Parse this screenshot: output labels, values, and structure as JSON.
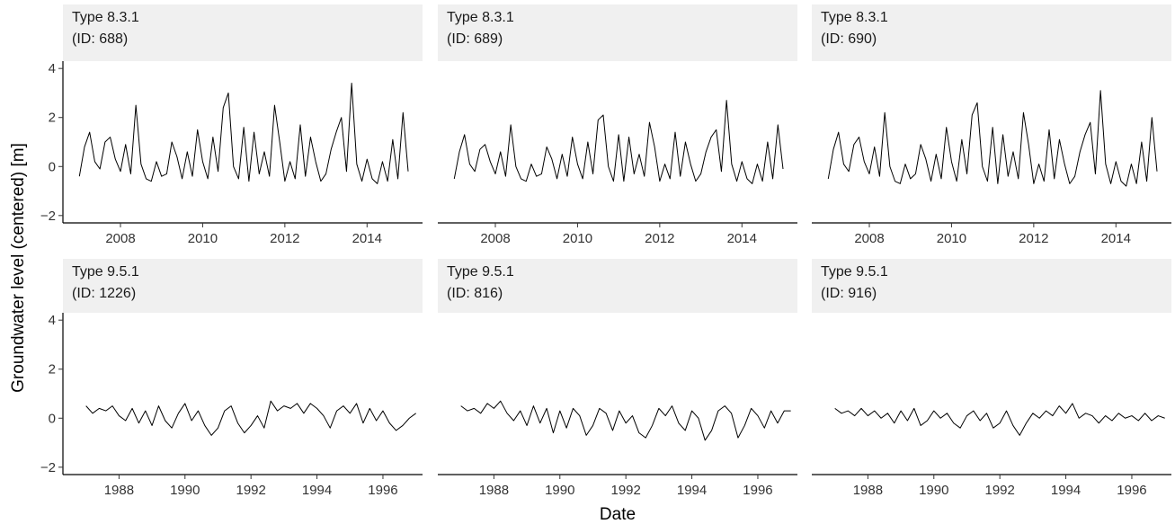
{
  "x_label": "Date",
  "y_label": "Groundwater level (centered) [m]",
  "chart_data": [
    {
      "type": "line",
      "title": "Type 8.3.1",
      "subtitle": "(ID: 688)",
      "color": "#000000",
      "xlim": [
        2006.6,
        2015.35
      ],
      "xticks": [
        2008,
        2010,
        2012,
        2014
      ],
      "ylim": [
        -2.3,
        4.3
      ],
      "yticks": [
        {
          "value": -2,
          "label": "−2"
        },
        0,
        2,
        4
      ],
      "x": [
        2007,
        2007.125,
        2007.25,
        2007.375,
        2007.5,
        2007.625,
        2007.75,
        2007.875,
        2008,
        2008.125,
        2008.25,
        2008.375,
        2008.5,
        2008.625,
        2008.75,
        2008.875,
        2009,
        2009.125,
        2009.25,
        2009.375,
        2009.5,
        2009.625,
        2009.75,
        2009.875,
        2010,
        2010.125,
        2010.25,
        2010.375,
        2010.5,
        2010.625,
        2010.75,
        2010.875,
        2011,
        2011.125,
        2011.25,
        2011.375,
        2011.5,
        2011.625,
        2011.75,
        2011.875,
        2012,
        2012.125,
        2012.25,
        2012.375,
        2012.5,
        2012.625,
        2012.75,
        2012.875,
        2013,
        2013.125,
        2013.25,
        2013.375,
        2013.5,
        2013.625,
        2013.75,
        2013.875,
        2014,
        2014.125,
        2014.25,
        2014.375,
        2014.5,
        2014.625,
        2014.75,
        2014.875,
        2015
      ],
      "values": [
        -0.4,
        0.8,
        1.4,
        0.2,
        -0.1,
        1.0,
        1.2,
        0.3,
        -0.2,
        0.9,
        -0.3,
        2.5,
        0.1,
        -0.5,
        -0.6,
        0.2,
        -0.4,
        -0.3,
        1.0,
        0.4,
        -0.5,
        0.6,
        -0.4,
        1.5,
        0.2,
        -0.5,
        1.2,
        -0.2,
        2.4,
        3.0,
        0.0,
        -0.5,
        1.6,
        -0.6,
        1.4,
        -0.3,
        0.6,
        -0.4,
        2.5,
        1.0,
        -0.6,
        0.2,
        -0.5,
        1.7,
        -0.4,
        1.2,
        0.2,
        -0.6,
        -0.3,
        0.7,
        1.4,
        2.0,
        -0.2,
        3.4,
        0.1,
        -0.6,
        0.3,
        -0.5,
        -0.7,
        0.2,
        -0.6,
        1.1,
        -0.5,
        2.2,
        -0.2
      ]
    },
    {
      "type": "line",
      "title": "Type 8.3.1",
      "subtitle": "(ID: 689)",
      "color": "#000000",
      "xlim": [
        2006.6,
        2015.35
      ],
      "xticks": [
        2008,
        2010,
        2012,
        2014
      ],
      "ylim": [
        -2.3,
        4.3
      ],
      "x": [
        2007,
        2007.125,
        2007.25,
        2007.375,
        2007.5,
        2007.625,
        2007.75,
        2007.875,
        2008,
        2008.125,
        2008.25,
        2008.375,
        2008.5,
        2008.625,
        2008.75,
        2008.875,
        2009,
        2009.125,
        2009.25,
        2009.375,
        2009.5,
        2009.625,
        2009.75,
        2009.875,
        2010,
        2010.125,
        2010.25,
        2010.375,
        2010.5,
        2010.625,
        2010.75,
        2010.875,
        2011,
        2011.125,
        2011.25,
        2011.375,
        2011.5,
        2011.625,
        2011.75,
        2011.875,
        2012,
        2012.125,
        2012.25,
        2012.375,
        2012.5,
        2012.625,
        2012.75,
        2012.875,
        2013,
        2013.125,
        2013.25,
        2013.375,
        2013.5,
        2013.625,
        2013.75,
        2013.875,
        2014,
        2014.125,
        2014.25,
        2014.375,
        2014.5,
        2014.625,
        2014.75,
        2014.875,
        2015
      ],
      "values": [
        -0.5,
        0.6,
        1.3,
        0.1,
        -0.2,
        0.7,
        0.9,
        0.2,
        -0.3,
        0.6,
        -0.4,
        1.7,
        0.0,
        -0.5,
        -0.6,
        0.1,
        -0.4,
        -0.3,
        0.8,
        0.3,
        -0.5,
        0.5,
        -0.4,
        1.2,
        0.1,
        -0.5,
        1.0,
        -0.3,
        1.9,
        2.1,
        0.0,
        -0.6,
        1.3,
        -0.6,
        1.2,
        -0.3,
        0.5,
        -0.4,
        1.8,
        0.8,
        -0.6,
        0.1,
        -0.5,
        1.4,
        -0.4,
        1.0,
        0.1,
        -0.6,
        -0.3,
        0.6,
        1.2,
        1.5,
        -0.2,
        2.7,
        0.1,
        -0.6,
        0.2,
        -0.5,
        -0.7,
        0.1,
        -0.6,
        1.0,
        -0.5,
        1.7,
        -0.1
      ]
    },
    {
      "type": "line",
      "title": "Type 8.3.1",
      "subtitle": "(ID: 690)",
      "color": "#000000",
      "xlim": [
        2006.6,
        2015.35
      ],
      "xticks": [
        2008,
        2010,
        2012,
        2014
      ],
      "ylim": [
        -2.3,
        4.3
      ],
      "x": [
        2007,
        2007.125,
        2007.25,
        2007.375,
        2007.5,
        2007.625,
        2007.75,
        2007.875,
        2008,
        2008.125,
        2008.25,
        2008.375,
        2008.5,
        2008.625,
        2008.75,
        2008.875,
        2009,
        2009.125,
        2009.25,
        2009.375,
        2009.5,
        2009.625,
        2009.75,
        2009.875,
        2010,
        2010.125,
        2010.25,
        2010.375,
        2010.5,
        2010.625,
        2010.75,
        2010.875,
        2011,
        2011.125,
        2011.25,
        2011.375,
        2011.5,
        2011.625,
        2011.75,
        2011.875,
        2012,
        2012.125,
        2012.25,
        2012.375,
        2012.5,
        2012.625,
        2012.75,
        2012.875,
        2013,
        2013.125,
        2013.25,
        2013.375,
        2013.5,
        2013.625,
        2013.75,
        2013.875,
        2014,
        2014.125,
        2014.25,
        2014.375,
        2014.5,
        2014.625,
        2014.75,
        2014.875,
        2015
      ],
      "values": [
        -0.5,
        0.7,
        1.4,
        0.1,
        -0.2,
        0.9,
        1.2,
        0.2,
        -0.3,
        0.8,
        -0.4,
        2.2,
        0.0,
        -0.6,
        -0.7,
        0.1,
        -0.5,
        -0.3,
        0.9,
        0.3,
        -0.6,
        0.5,
        -0.5,
        1.6,
        0.2,
        -0.6,
        1.1,
        -0.3,
        2.1,
        2.6,
        0.0,
        -0.6,
        1.6,
        -0.7,
        1.3,
        -0.4,
        0.6,
        -0.5,
        2.2,
        0.9,
        -0.7,
        0.1,
        -0.6,
        1.5,
        -0.5,
        1.1,
        0.1,
        -0.7,
        -0.4,
        0.6,
        1.3,
        1.8,
        -0.3,
        3.1,
        0.1,
        -0.7,
        0.2,
        -0.6,
        -0.8,
        0.1,
        -0.7,
        1.0,
        -0.6,
        2.0,
        -0.2
      ]
    },
    {
      "type": "line",
      "title": "Type 9.5.1",
      "subtitle": "(ID: 1226)",
      "color": "#000000",
      "xlim": [
        1986.3,
        1997.2
      ],
      "xticks": [
        1988,
        1990,
        1992,
        1994,
        1996
      ],
      "ylim": [
        -2.3,
        4.3
      ],
      "yticks": [
        {
          "value": -2,
          "label": "−2"
        },
        0,
        2,
        4
      ],
      "x": [
        1987,
        1987.2,
        1987.4,
        1987.6,
        1987.8,
        1988,
        1988.2,
        1988.4,
        1988.6,
        1988.8,
        1989,
        1989.2,
        1989.4,
        1989.6,
        1989.8,
        1990,
        1990.2,
        1990.4,
        1990.6,
        1990.8,
        1991,
        1991.2,
        1991.4,
        1991.6,
        1991.8,
        1992,
        1992.2,
        1992.4,
        1992.6,
        1992.8,
        1993,
        1993.2,
        1993.4,
        1993.6,
        1993.8,
        1994,
        1994.2,
        1994.4,
        1994.6,
        1994.8,
        1995,
        1995.2,
        1995.4,
        1995.6,
        1995.8,
        1996,
        1996.2,
        1996.4,
        1996.6,
        1996.8,
        1997
      ],
      "values": [
        0.5,
        0.2,
        0.4,
        0.3,
        0.5,
        0.1,
        -0.1,
        0.4,
        -0.2,
        0.3,
        -0.3,
        0.5,
        -0.1,
        -0.4,
        0.2,
        0.6,
        -0.1,
        0.3,
        -0.3,
        -0.7,
        -0.4,
        0.3,
        0.5,
        -0.2,
        -0.6,
        -0.3,
        0.1,
        -0.4,
        0.7,
        0.3,
        0.5,
        0.4,
        0.6,
        0.2,
        0.6,
        0.4,
        0.1,
        -0.4,
        0.3,
        0.5,
        0.2,
        0.6,
        -0.2,
        0.4,
        -0.1,
        0.3,
        -0.2,
        -0.5,
        -0.3,
        0.0,
        0.2
      ]
    },
    {
      "type": "line",
      "title": "Type 9.5.1",
      "subtitle": "(ID: 816)",
      "color": "#000000",
      "xlim": [
        1986.3,
        1997.2
      ],
      "xticks": [
        1988,
        1990,
        1992,
        1994,
        1996
      ],
      "ylim": [
        -2.3,
        4.3
      ],
      "x": [
        1987,
        1987.2,
        1987.4,
        1987.6,
        1987.8,
        1988,
        1988.2,
        1988.4,
        1988.6,
        1988.8,
        1989,
        1989.2,
        1989.4,
        1989.6,
        1989.8,
        1990,
        1990.2,
        1990.4,
        1990.6,
        1990.8,
        1991,
        1991.2,
        1991.4,
        1991.6,
        1991.8,
        1992,
        1992.2,
        1992.4,
        1992.6,
        1992.8,
        1993,
        1993.2,
        1993.4,
        1993.6,
        1993.8,
        1994,
        1994.2,
        1994.4,
        1994.6,
        1994.8,
        1995,
        1995.2,
        1995.4,
        1995.6,
        1995.8,
        1996,
        1996.2,
        1996.4,
        1996.6,
        1996.8,
        1997
      ],
      "values": [
        0.5,
        0.3,
        0.4,
        0.2,
        0.6,
        0.4,
        0.7,
        0.2,
        -0.1,
        0.3,
        -0.3,
        0.5,
        -0.2,
        0.4,
        -0.6,
        0.3,
        -0.4,
        0.4,
        0.1,
        -0.7,
        -0.3,
        0.4,
        0.2,
        -0.5,
        0.3,
        -0.2,
        0.1,
        -0.6,
        -0.8,
        -0.3,
        0.4,
        0.1,
        0.5,
        -0.2,
        -0.5,
        0.3,
        0.0,
        -0.9,
        -0.5,
        0.3,
        0.5,
        0.2,
        -0.8,
        -0.3,
        0.4,
        0.1,
        -0.4,
        0.3,
        -0.2,
        0.3,
        0.3
      ]
    },
    {
      "type": "line",
      "title": "Type 9.5.1",
      "subtitle": "(ID: 916)",
      "color": "#000000",
      "xlim": [
        1986.3,
        1997.2
      ],
      "xticks": [
        1988,
        1990,
        1992,
        1994,
        1996
      ],
      "ylim": [
        -2.3,
        4.3
      ],
      "x": [
        1987,
        1987.2,
        1987.4,
        1987.6,
        1987.8,
        1988,
        1988.2,
        1988.4,
        1988.6,
        1988.8,
        1989,
        1989.2,
        1989.4,
        1989.6,
        1989.8,
        1990,
        1990.2,
        1990.4,
        1990.6,
        1990.8,
        1991,
        1991.2,
        1991.4,
        1991.6,
        1991.8,
        1992,
        1992.2,
        1992.4,
        1992.6,
        1992.8,
        1993,
        1993.2,
        1993.4,
        1993.6,
        1993.8,
        1994,
        1994.2,
        1994.4,
        1994.6,
        1994.8,
        1995,
        1995.2,
        1995.4,
        1995.6,
        1995.8,
        1996,
        1996.2,
        1996.4,
        1996.6,
        1996.8,
        1997
      ],
      "values": [
        0.4,
        0.2,
        0.3,
        0.1,
        0.4,
        0.1,
        0.3,
        0.0,
        0.2,
        -0.2,
        0.3,
        -0.1,
        0.4,
        -0.3,
        -0.1,
        0.3,
        0.0,
        0.2,
        -0.2,
        -0.4,
        0.1,
        0.3,
        -0.1,
        0.2,
        -0.4,
        -0.2,
        0.3,
        -0.3,
        -0.7,
        -0.2,
        0.2,
        0.0,
        0.3,
        0.1,
        0.5,
        0.2,
        0.6,
        0.0,
        0.2,
        0.1,
        -0.2,
        0.1,
        -0.1,
        0.2,
        0.0,
        0.1,
        -0.1,
        0.2,
        -0.1,
        0.1,
        0.0
      ]
    }
  ]
}
